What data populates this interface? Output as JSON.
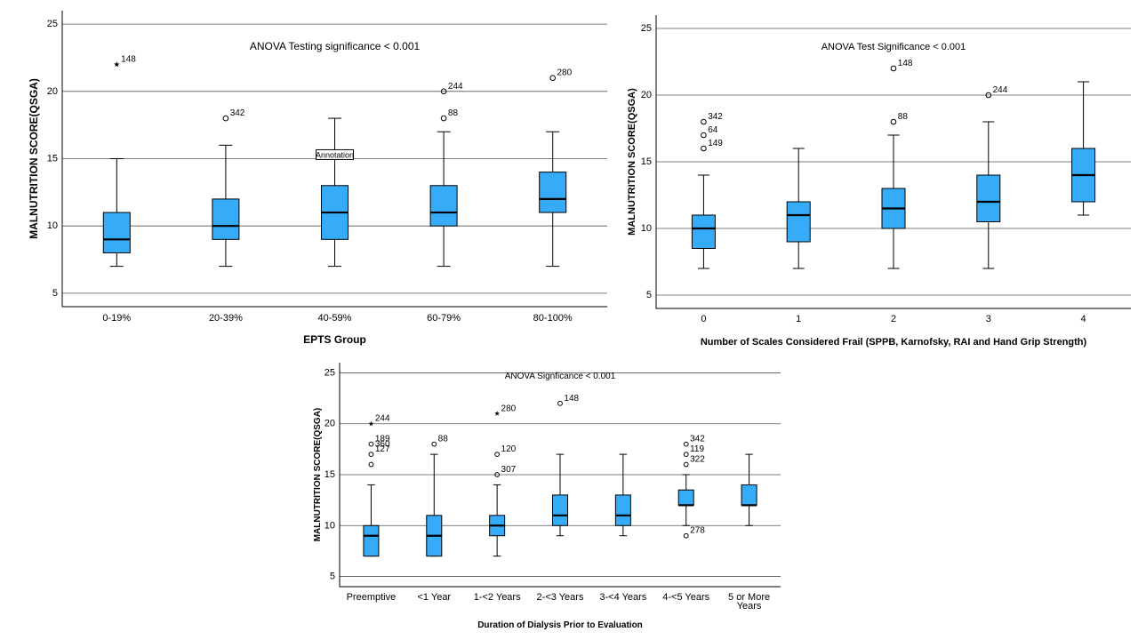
{
  "colors": {
    "box_fill": "#36ABF7",
    "grid": "#555555",
    "frame": "#000000"
  },
  "chart_data": [
    {
      "type": "boxplot",
      "title": "ANOVA Testing significance < 0.001",
      "xlabel": "EPTS Group",
      "ylabel": "MALNUTRITION SCORE(QSGA)",
      "ylim": [
        4,
        26
      ],
      "yticks": [
        5,
        10,
        15,
        20,
        25
      ],
      "grid": true,
      "categories": [
        "0-19%",
        "20-39%",
        "40-59%",
        "60-79%",
        "80-100%"
      ],
      "boxes": [
        {
          "min": 7,
          "q1": 8,
          "median": 9,
          "q3": 11,
          "max": 15,
          "outliers": [
            {
              "value": 22,
              "label": "148",
              "marker": "star"
            }
          ]
        },
        {
          "min": 7,
          "q1": 9,
          "median": 10,
          "q3": 12,
          "max": 16,
          "outliers": [
            {
              "value": 18,
              "label": "342",
              "marker": "circle"
            }
          ]
        },
        {
          "min": 7,
          "q1": 9,
          "median": 11,
          "q3": 13,
          "max": 18,
          "outliers": []
        },
        {
          "min": 7,
          "q1": 10,
          "median": 11,
          "q3": 13,
          "max": 17,
          "outliers": [
            {
              "value": 20,
              "label": "244",
              "marker": "circle"
            },
            {
              "value": 18,
              "label": "88",
              "marker": "circle"
            }
          ]
        },
        {
          "min": 7,
          "q1": 11,
          "median": 12,
          "q3": 14,
          "max": 17,
          "outliers": [
            {
              "value": 21,
              "label": "280",
              "marker": "circle"
            }
          ]
        }
      ],
      "annotation": {
        "text": "Annotation",
        "category_index": 2,
        "value": 15.3
      }
    },
    {
      "type": "boxplot",
      "title": "ANOVA Test Significance < 0.001",
      "xlabel": "Number of Scales Considered Frail (SPPB, Karnofsky, RAI and Hand Grip Strength)",
      "ylabel": "MALNUTRITION SCORE(QSGA)",
      "ylim": [
        4,
        26
      ],
      "yticks": [
        5,
        10,
        15,
        20,
        25
      ],
      "grid": true,
      "categories": [
        "0",
        "1",
        "2",
        "3",
        "4"
      ],
      "boxes": [
        {
          "min": 7,
          "q1": 8.5,
          "median": 10,
          "q3": 11,
          "max": 14,
          "outliers": [
            {
              "value": 18,
              "label": "342",
              "marker": "circle"
            },
            {
              "value": 17,
              "label": "64",
              "marker": "circle"
            },
            {
              "value": 16,
              "label": "149",
              "marker": "circle"
            }
          ]
        },
        {
          "min": 7,
          "q1": 9,
          "median": 11,
          "q3": 12,
          "max": 16,
          "outliers": []
        },
        {
          "min": 7,
          "q1": 10,
          "median": 11.5,
          "q3": 13,
          "max": 17,
          "outliers": [
            {
              "value": 22,
              "label": "148",
              "marker": "circle"
            },
            {
              "value": 18,
              "label": "88",
              "marker": "circle"
            }
          ]
        },
        {
          "min": 7,
          "q1": 10.5,
          "median": 12,
          "q3": 14,
          "max": 18,
          "outliers": [
            {
              "value": 20,
              "label": "244",
              "marker": "circle"
            }
          ]
        },
        {
          "min": 11,
          "q1": 12,
          "median": 14,
          "q3": 16,
          "max": 21,
          "outliers": []
        }
      ]
    },
    {
      "type": "boxplot",
      "title": "ANOVA Signficance < 0.001",
      "xlabel": "Duration of Dialysis Prior to Evaluation",
      "ylabel": "MALNUTRITION SCORE(QSGA)",
      "ylim": [
        4,
        26
      ],
      "yticks": [
        5,
        10,
        15,
        20,
        25
      ],
      "grid": true,
      "categories": [
        "Preemptive",
        "<1 Year",
        "1-<2 Years",
        "2-<3 Years",
        "3-<4 Years",
        "4-<5 Years",
        "5 or More\nYears"
      ],
      "boxes": [
        {
          "min": 7,
          "q1": 7,
          "median": 9,
          "q3": 10,
          "max": 14,
          "outliers": [
            {
              "value": 20,
              "label": "244",
              "marker": "star"
            },
            {
              "value": 18,
              "label": "189",
              "marker": "circle"
            },
            {
              "value": 17.5,
              "label": "360",
              "marker": "none"
            },
            {
              "value": 17,
              "label": "127",
              "marker": "circle"
            },
            {
              "value": 16,
              "label": "",
              "marker": "circle"
            }
          ]
        },
        {
          "min": 7,
          "q1": 7,
          "median": 9,
          "q3": 11,
          "max": 17,
          "outliers": [
            {
              "value": 18,
              "label": "88",
              "marker": "circle"
            }
          ]
        },
        {
          "min": 7,
          "q1": 9,
          "median": 10,
          "q3": 11,
          "max": 14,
          "outliers": [
            {
              "value": 21,
              "label": "280",
              "marker": "star"
            },
            {
              "value": 17,
              "label": "120",
              "marker": "circle"
            },
            {
              "value": 15,
              "label": "307",
              "marker": "circle"
            }
          ]
        },
        {
          "min": 9,
          "q1": 10,
          "median": 11,
          "q3": 13,
          "max": 17,
          "outliers": [
            {
              "value": 22,
              "label": "148",
              "marker": "circle"
            }
          ]
        },
        {
          "min": 9,
          "q1": 10,
          "median": 11,
          "q3": 13,
          "max": 17,
          "outliers": []
        },
        {
          "min": 10,
          "q1": 12,
          "median": 12,
          "q3": 13.5,
          "max": 15,
          "outliers": [
            {
              "value": 18,
              "label": "342",
              "marker": "circle"
            },
            {
              "value": 17,
              "label": "119",
              "marker": "circle"
            },
            {
              "value": 16,
              "label": "322",
              "marker": "circle"
            },
            {
              "value": 9,
              "label": "278",
              "marker": "circle"
            }
          ]
        },
        {
          "min": 10,
          "q1": 12,
          "median": 12,
          "q3": 14,
          "max": 17,
          "outliers": []
        }
      ]
    }
  ]
}
